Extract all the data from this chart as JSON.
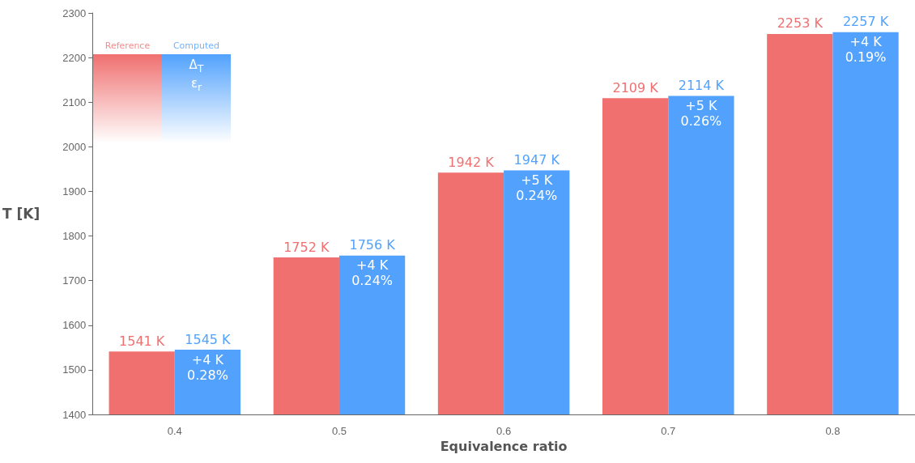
{
  "chart_data": {
    "type": "bar",
    "xlabel": "Equivalence ratio",
    "ylabel": "T [K]",
    "categories": [
      "0.4",
      "0.5",
      "0.6",
      "0.7",
      "0.8"
    ],
    "series": [
      {
        "name": "Reference",
        "color": "#f07070",
        "values": [
          1541,
          1752,
          1942,
          2109,
          2253
        ],
        "value_labels": [
          "1541 K",
          "1752 K",
          "1942 K",
          "2109 K",
          "2253 K"
        ]
      },
      {
        "name": "Computed",
        "color": "#52a2fd",
        "values": [
          1545,
          1756,
          1947,
          2114,
          2257
        ],
        "value_labels": [
          "1545 K",
          "1756 K",
          "1947 K",
          "2114 K",
          "2257 K"
        ]
      }
    ],
    "ylim": [
      1400,
      2300
    ],
    "yticks": [
      1400,
      1500,
      1600,
      1700,
      1800,
      1900,
      2000,
      2100,
      2200,
      2300
    ],
    "grid": false,
    "legend": "top left",
    "annotations": [
      "Δ$_{T}$",
      "ε$_{r}$",
      {
        "text": "+4 K\n0.28%",
        "x": "0.4",
        "y": 1545
      },
      {
        "text": "+4 K\n0.24%",
        "x": "0.5",
        "y": 1756
      },
      {
        "text": "+5 K\n0.24%",
        "x": "0.6",
        "y": 1947
      },
      {
        "text": "+5 K\n0.26%",
        "x": "0.7",
        "y": 2114
      },
      {
        "text": "+4 K\n0.19%",
        "x": "0.8",
        "y": 2257
      }
    ]
  }
}
